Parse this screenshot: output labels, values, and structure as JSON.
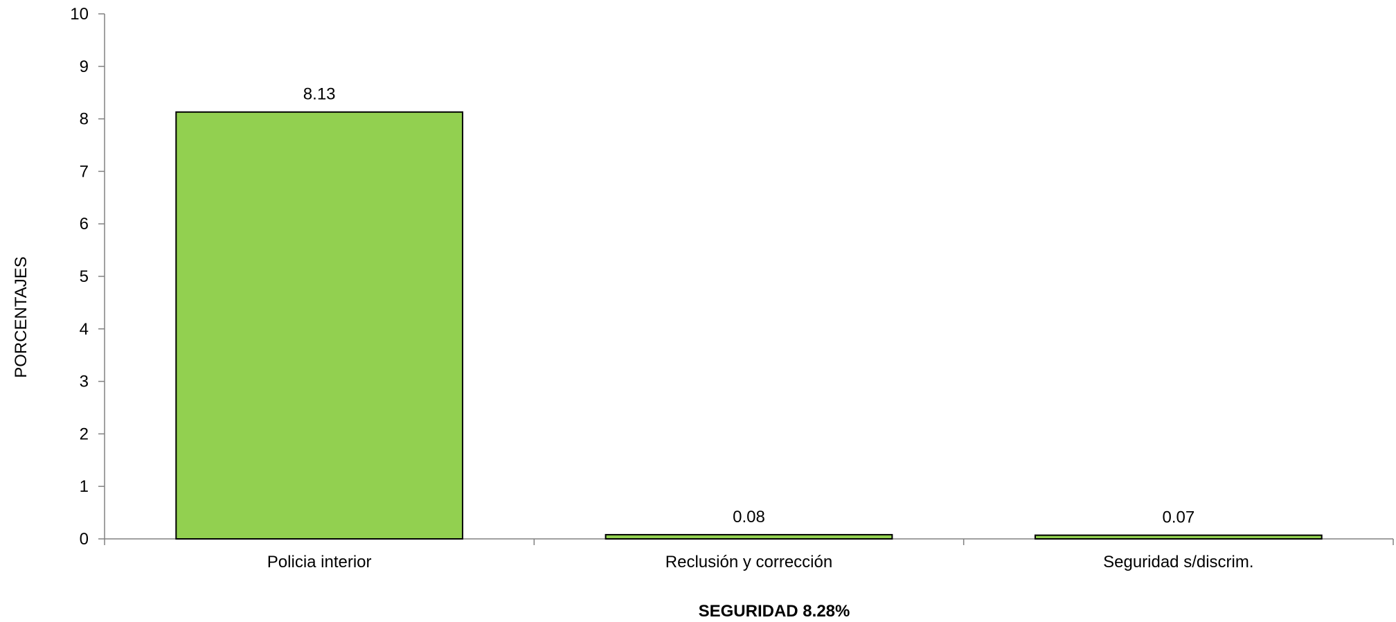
{
  "chart_data": {
    "type": "bar",
    "title": "SEGURIDAD 8.28%",
    "xlabel": "",
    "ylabel": "PORCENTAJES",
    "categories": [
      "Policia interior",
      "Reclusión y corrección",
      "Seguridad s/discrim."
    ],
    "values": [
      8.13,
      0.08,
      0.07
    ],
    "data_labels": [
      "8.13",
      "0.08",
      "0.07"
    ],
    "ylim": [
      0,
      10
    ],
    "yticks": [
      0,
      1,
      2,
      3,
      4,
      5,
      6,
      7,
      8,
      9,
      10
    ],
    "ytick_labels": [
      "0",
      "1",
      "2",
      "3",
      "4",
      "5",
      "6",
      "7",
      "8",
      "9",
      "10"
    ],
    "grid": false,
    "legend": "none",
    "colors": {
      "bar_fill": "#92d050",
      "bar_stroke": "#000000",
      "axis": "#808080"
    }
  }
}
